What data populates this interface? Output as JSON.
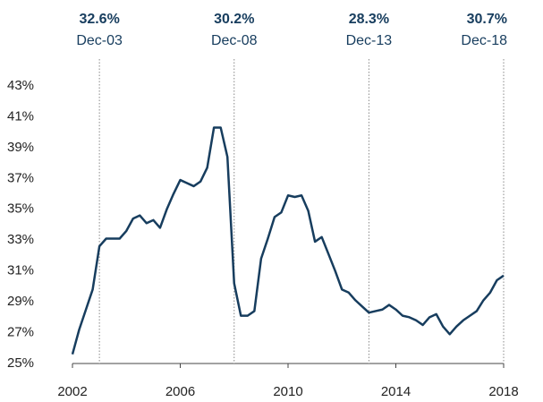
{
  "chart_data": {
    "type": "line",
    "x": [
      2002,
      2002.25,
      2002.5,
      2002.75,
      2003,
      2003.25,
      2003.5,
      2003.75,
      2004,
      2004.25,
      2004.5,
      2004.75,
      2005,
      2005.25,
      2005.5,
      2005.75,
      2006,
      2006.25,
      2006.5,
      2006.75,
      2007,
      2007.25,
      2007.5,
      2007.75,
      2008,
      2008.25,
      2008.5,
      2008.75,
      2009,
      2009.25,
      2009.5,
      2009.75,
      2010,
      2010.25,
      2010.5,
      2010.75,
      2011,
      2011.25,
      2011.5,
      2011.75,
      2012,
      2012.25,
      2012.5,
      2012.75,
      2013,
      2013.25,
      2013.5,
      2013.75,
      2014,
      2014.25,
      2014.5,
      2014.75,
      2015,
      2015.25,
      2015.5,
      2015.75,
      2016,
      2016.25,
      2016.5,
      2016.75,
      2017,
      2017.25,
      2017.5,
      2017.75,
      2018
    ],
    "values": [
      25.6,
      27.2,
      28.5,
      29.8,
      32.6,
      33.1,
      33.1,
      33.1,
      33.6,
      34.4,
      34.6,
      34.1,
      34.3,
      33.8,
      35.0,
      36.0,
      36.9,
      36.7,
      36.5,
      36.8,
      37.7,
      40.3,
      40.3,
      38.4,
      30.2,
      28.1,
      28.1,
      28.4,
      31.8,
      33.1,
      34.5,
      34.8,
      35.9,
      35.8,
      35.9,
      34.9,
      32.9,
      33.2,
      32.1,
      31.0,
      29.8,
      29.6,
      29.1,
      28.7,
      28.3,
      28.4,
      28.5,
      28.8,
      28.5,
      28.1,
      28.0,
      27.8,
      27.5,
      28.0,
      28.2,
      27.4,
      26.9,
      27.4,
      27.8,
      28.1,
      28.4,
      29.1,
      29.6,
      30.4,
      30.7
    ],
    "color": "#173d5e",
    "xlim": [
      2002,
      2018
    ],
    "xticks": [
      2002,
      2006,
      2010,
      2014,
      2018
    ],
    "ylim": [
      25,
      43
    ],
    "yticks": [
      {
        "value": 25,
        "label": "25%"
      },
      {
        "value": 27,
        "label": "27%"
      },
      {
        "value": 29,
        "label": "29%"
      },
      {
        "value": 31,
        "label": "31%"
      },
      {
        "value": 33,
        "label": "33%"
      },
      {
        "value": 35,
        "label": "35%"
      },
      {
        "value": 37,
        "label": "37%"
      },
      {
        "value": 39,
        "label": "39%"
      },
      {
        "value": 41,
        "label": "41%"
      },
      {
        "value": 43,
        "label": "43%"
      }
    ],
    "annotations": [
      {
        "x": 2003,
        "label": "32.6%",
        "date": "Dec-03"
      },
      {
        "x": 2008,
        "label": "30.2%",
        "date": "Dec-08"
      },
      {
        "x": 2013,
        "label": "28.3%",
        "date": "Dec-13"
      },
      {
        "x": 2018,
        "label": "30.7%",
        "date": "Dec-18"
      }
    ]
  }
}
